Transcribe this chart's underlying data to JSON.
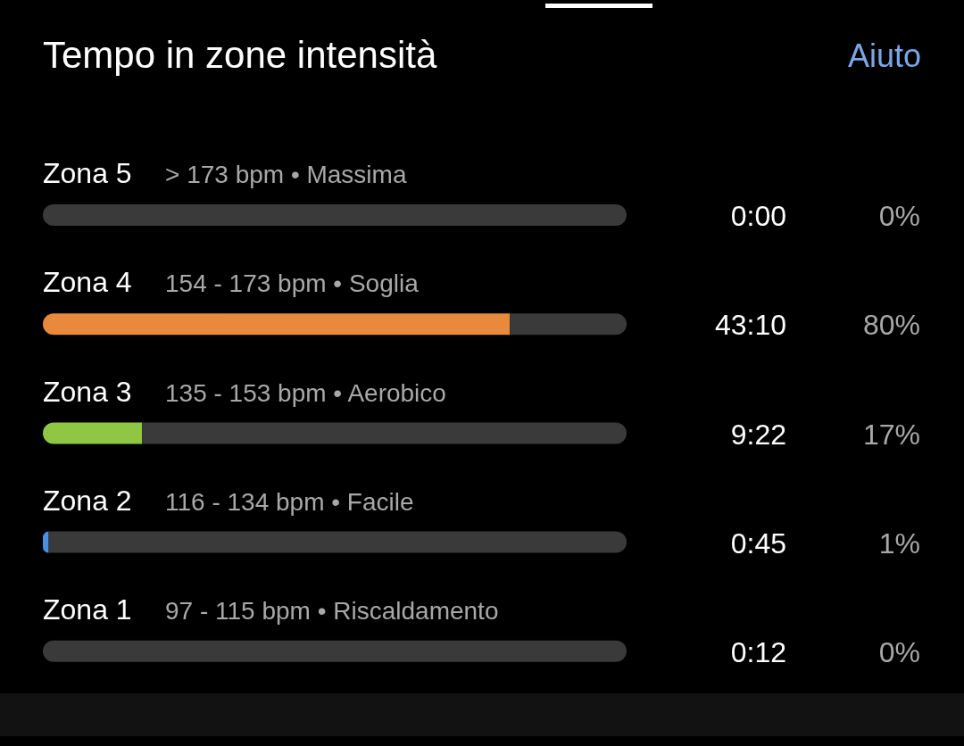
{
  "chart_data": {
    "type": "bar",
    "orientation": "horizontal",
    "stacked": true,
    "title": "Tempo in zone intensità",
    "categories": [
      "Zona 5",
      "Zona 4",
      "Zona 3",
      "Zona 2",
      "Zona 1"
    ],
    "series": [
      {
        "values": [
          0,
          80,
          17,
          1,
          0
        ],
        "colors": [
          "#e0463c",
          "#e8893c",
          "#8fc744",
          "#4a8fe0",
          "#bdbdbd"
        ],
        "value_labels": [
          "0%",
          "80%",
          "17%",
          "1%",
          "0%"
        ]
      },
      {
        "values": [
          100,
          20,
          83,
          99,
          100
        ],
        "color": "#3a3a3a"
      }
    ],
    "xlim": [
      0,
      100
    ],
    "tick_labels": false,
    "annotations": [
      "Aiuto",
      "> 173 bpm • Massima",
      "0:00",
      "154 - 173 bpm • Soglia",
      "43:10",
      "135 - 153 bpm • Aerobico",
      "9:22",
      "116 - 134 bpm • Facile",
      "0:45",
      "97 - 115 bpm • Riscaldamento",
      "0:12"
    ]
  }
}
